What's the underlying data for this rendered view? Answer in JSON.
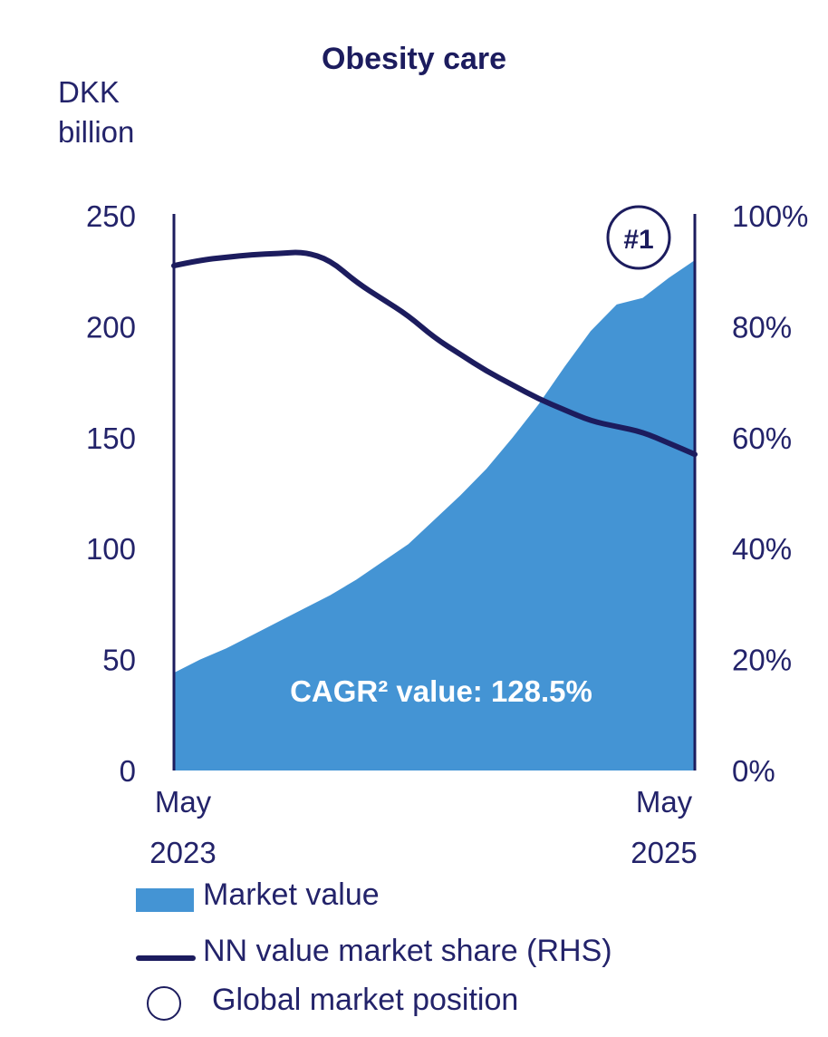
{
  "chart_data": {
    "type": "area",
    "title": "Obesity care",
    "ylabel": "DKK\nbillion",
    "y_left_ticks": [
      "250",
      "200",
      "150",
      "100",
      "50",
      "0"
    ],
    "y_right_ticks": [
      "100%",
      "80%",
      "60%",
      "40%",
      "20%",
      "0%"
    ],
    "ylim_left": [
      0,
      250
    ],
    "ylim_right": [
      0,
      100
    ],
    "x_tick_labels": [
      {
        "line1": "May",
        "line2": "2023"
      },
      {
        "line1": "May",
        "line2": "2025"
      }
    ],
    "annotation": "CAGR² value: 128.5%",
    "position_badge": "#1",
    "series": [
      {
        "name": "Market value",
        "axis": "left",
        "type": "area",
        "color": "#4494d4",
        "x": [
          0,
          0.05,
          0.1,
          0.15,
          0.2,
          0.25,
          0.3,
          0.35,
          0.4,
          0.45,
          0.5,
          0.55,
          0.6,
          0.65,
          0.7,
          0.75,
          0.8,
          0.85,
          0.9,
          0.95,
          1.0
        ],
        "values": [
          44,
          50,
          55,
          61,
          67,
          73,
          79,
          86,
          94,
          102,
          113,
          124,
          136,
          150,
          165,
          182,
          198,
          210,
          213,
          222,
          230
        ]
      },
      {
        "name": "NN value market share (RHS)",
        "axis": "right",
        "type": "line",
        "color": "#1c1c5e",
        "x": [
          0,
          0.05,
          0.1,
          0.15,
          0.2,
          0.25,
          0.3,
          0.35,
          0.4,
          0.45,
          0.5,
          0.55,
          0.6,
          0.65,
          0.7,
          0.75,
          0.8,
          0.85,
          0.9,
          0.95,
          1.0
        ],
        "values": [
          91,
          92,
          92.5,
          93,
          93.2,
          93.5,
          92,
          88,
          85,
          82,
          78,
          75,
          72,
          69.5,
          67,
          65,
          63,
          62,
          61,
          59,
          57
        ]
      }
    ],
    "legend": [
      {
        "label": "Market value",
        "kind": "area"
      },
      {
        "label": "NN value market share (RHS)",
        "kind": "line"
      },
      {
        "label": "Global market position",
        "kind": "circle"
      }
    ]
  }
}
